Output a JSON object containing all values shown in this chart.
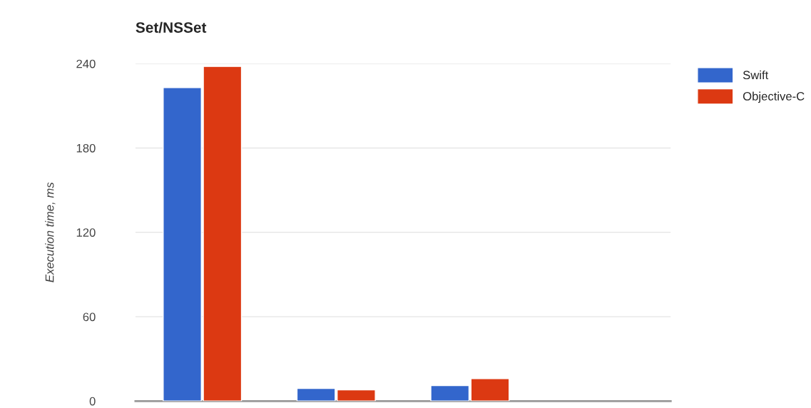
{
  "chart_data": {
    "type": "bar",
    "title": "Set/NSSet",
    "ylabel": "Execution time, ms",
    "categories": [
      null,
      null,
      null,
      null
    ],
    "series": [
      {
        "name": "Swift",
        "color": "#3366cc",
        "values": [
          223,
          9,
          11,
          null
        ]
      },
      {
        "name": "Objective-C",
        "color": "#dc3912",
        "values": [
          238,
          8,
          16,
          null
        ]
      }
    ],
    "ylim": [
      0,
      240
    ],
    "yticks": [
      0,
      60,
      120,
      180,
      240
    ],
    "grid": "y",
    "legend": "top right"
  }
}
